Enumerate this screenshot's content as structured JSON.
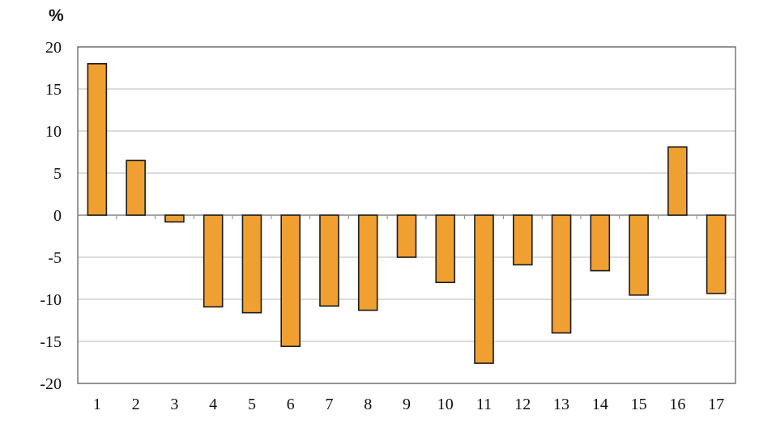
{
  "chart_data": {
    "type": "bar",
    "unit_label": "%",
    "categories": [
      "1",
      "2",
      "3",
      "4",
      "5",
      "6",
      "7",
      "8",
      "9",
      "10",
      "11",
      "12",
      "13",
      "14",
      "15",
      "16",
      "17"
    ],
    "values": [
      18,
      6.5,
      -0.8,
      -10.9,
      -11.6,
      -15.6,
      -10.8,
      -11.3,
      -5,
      -8,
      -17.6,
      -5.9,
      -14,
      -6.6,
      -9.5,
      8.1,
      -9.3
    ],
    "y_ticks": [
      "20",
      "15",
      "10",
      "5",
      "0",
      "-5",
      "-10",
      "-15",
      "-20"
    ],
    "ylim": [
      -20,
      20
    ],
    "y_step": 5,
    "grid": true,
    "legend": "none",
    "title": "",
    "xlabel": "",
    "ylabel": "",
    "colors": {
      "bar_fill": "#F0A030",
      "bar_stroke": "#1a1a1a",
      "grid": "#c8c8c8",
      "axis": "#555555"
    }
  }
}
